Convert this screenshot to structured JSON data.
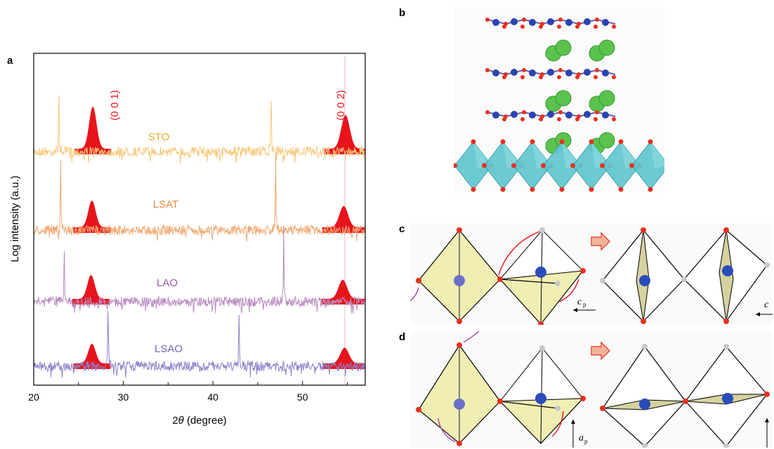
{
  "figure": {
    "panel_labels": {
      "a": "a",
      "b": "b",
      "c": "c",
      "d": "d"
    },
    "panel_c_axis_labels": [
      "c",
      "p",
      "c"
    ],
    "panel_d_axis_labels": [
      "a",
      "p"
    ],
    "colors": {
      "red_peak": "#e8141c",
      "sto": "#f7c87a",
      "lsat": "#f2a870",
      "lao": "#b98ac0",
      "lsao": "#8c82c8",
      "label_gold": "#e8a82c",
      "label_orange": "#ee8a3c",
      "label_purple": "#9a58a8",
      "label_lsao": "#7068b8",
      "octahedron_cyan": "#5fc6cf",
      "octahedron_yellow": "#f1eeb4",
      "arrow_purple": "#a84ca8"
    }
  },
  "chart_data": {
    "type": "line",
    "xlabel_prefix": "2",
    "xlabel_theta": "θ",
    "xlabel_suffix": " (degree)",
    "ylabel": "Log intensity (a.u.)",
    "xlim": [
      20,
      57
    ],
    "x_ticks": [
      20,
      30,
      40,
      50
    ],
    "peak_labels": [
      "(0 0 1)",
      "(0 0 2)"
    ],
    "series": [
      {
        "name": "STO",
        "substrate_peaks_2theta": [
          22.8,
          46.5
        ],
        "film_peaks_2theta": [
          26.6,
          54.8
        ]
      },
      {
        "name": "LSAT",
        "substrate_peaks_2theta": [
          23.0,
          47.0
        ],
        "film_peaks_2theta": [
          26.5,
          54.6
        ]
      },
      {
        "name": "LAO",
        "substrate_peaks_2theta": [
          23.4,
          47.9
        ],
        "film_peaks_2theta": [
          26.4,
          54.5
        ]
      },
      {
        "name": "LSAO",
        "substrate_peaks_2theta": [
          28.3,
          42.9
        ],
        "film_peaks_2theta": [
          26.5,
          54.7
        ]
      }
    ]
  }
}
